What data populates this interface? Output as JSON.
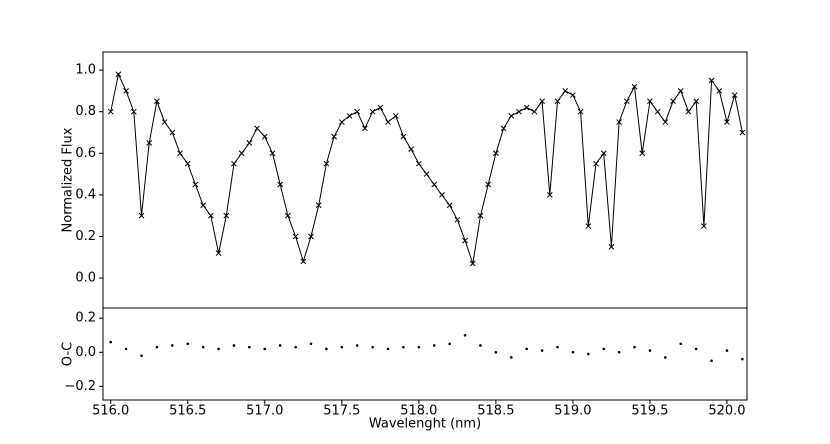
{
  "chart_data": [
    {
      "type": "line",
      "ylabel": "Normalized Flux",
      "color": "#000000",
      "marker": "x",
      "xlim": [
        515.95,
        520.13
      ],
      "ylim": [
        -0.144,
        1.087
      ],
      "yticks": [
        {
          "value": 0,
          "label": "0.0"
        },
        0.2,
        0.4,
        0.6,
        0.8,
        {
          "value": 1,
          "label": "1.0"
        }
      ],
      "x": [
        516.0,
        516.05,
        516.1,
        516.15,
        516.2,
        516.25,
        516.3,
        516.35,
        516.4,
        516.45,
        516.5,
        516.55,
        516.6,
        516.65,
        516.7,
        516.75,
        516.8,
        516.85,
        516.9,
        516.95,
        517.0,
        517.05,
        517.1,
        517.15,
        517.2,
        517.25,
        517.3,
        517.35,
        517.4,
        517.45,
        517.5,
        517.55,
        517.6,
        517.65,
        517.7,
        517.75,
        517.8,
        517.85,
        517.9,
        517.95,
        518.0,
        518.05,
        518.1,
        518.15,
        518.2,
        518.25,
        518.3,
        518.35,
        518.4,
        518.45,
        518.5,
        518.55,
        518.6,
        518.65,
        518.7,
        518.75,
        518.8,
        518.85,
        518.9,
        518.95,
        519.0,
        519.05,
        519.1,
        519.15,
        519.2,
        519.25,
        519.3,
        519.35,
        519.4,
        519.45,
        519.5,
        519.55,
        519.6,
        519.65,
        519.7,
        519.75,
        519.8,
        519.85,
        519.9,
        519.95,
        520.0,
        520.05,
        520.1
      ],
      "values": [
        0.8,
        0.98,
        0.9,
        0.8,
        0.3,
        0.65,
        0.85,
        0.75,
        0.7,
        0.6,
        0.55,
        0.45,
        0.35,
        0.3,
        0.12,
        0.3,
        0.55,
        0.6,
        0.65,
        0.72,
        0.68,
        0.6,
        0.45,
        0.3,
        0.2,
        0.08,
        0.2,
        0.35,
        0.55,
        0.68,
        0.75,
        0.78,
        0.8,
        0.72,
        0.8,
        0.82,
        0.75,
        0.78,
        0.68,
        0.62,
        0.55,
        0.5,
        0.45,
        0.4,
        0.35,
        0.28,
        0.18,
        0.07,
        0.3,
        0.45,
        0.6,
        0.72,
        0.78,
        0.8,
        0.82,
        0.8,
        0.85,
        0.4,
        0.85,
        0.9,
        0.88,
        0.8,
        0.25,
        0.55,
        0.6,
        0.15,
        0.75,
        0.85,
        0.92,
        0.6,
        0.85,
        0.8,
        0.75,
        0.85,
        0.9,
        0.8,
        0.85,
        0.25,
        0.95,
        0.9,
        0.75,
        0.88,
        0.7
      ]
    },
    {
      "type": "scatter",
      "ylabel": "O-C",
      "xlabel": "Wavelenght (nm)",
      "color": "#000000",
      "xlim": [
        515.95,
        520.13
      ],
      "ylim": [
        -0.28,
        0.26
      ],
      "xticks": [
        {
          "value": 516,
          "label": "516.0"
        },
        516.5,
        {
          "value": 517,
          "label": "517.0"
        },
        517.5,
        {
          "value": 518,
          "label": "518.0"
        },
        518.5,
        {
          "value": 519,
          "label": "519.0"
        },
        519.5,
        {
          "value": 520,
          "label": "520.0"
        }
      ],
      "yticks": [
        {
          "value": -0.2,
          "label": "−0.2"
        },
        {
          "value": 0,
          "label": "0.0"
        },
        0.2
      ],
      "x": [
        516.0,
        516.1,
        516.2,
        516.3,
        516.4,
        516.5,
        516.6,
        516.7,
        516.8,
        516.9,
        517.0,
        517.1,
        517.2,
        517.3,
        517.4,
        517.5,
        517.6,
        517.7,
        517.8,
        517.9,
        518.0,
        518.1,
        518.2,
        518.3,
        518.4,
        518.5,
        518.6,
        518.7,
        518.8,
        518.9,
        519.0,
        519.1,
        519.2,
        519.3,
        519.4,
        519.5,
        519.6,
        519.7,
        519.8,
        519.9,
        520.0,
        520.1
      ],
      "values": [
        0.06,
        0.02,
        -0.02,
        0.03,
        0.04,
        0.05,
        0.03,
        0.02,
        0.04,
        0.03,
        0.02,
        0.04,
        0.03,
        0.05,
        0.02,
        0.03,
        0.04,
        0.03,
        0.02,
        0.03,
        0.03,
        0.04,
        0.05,
        0.1,
        0.04,
        0.0,
        -0.03,
        0.02,
        0.01,
        0.03,
        0.0,
        -0.01,
        0.02,
        0.0,
        0.03,
        0.01,
        -0.03,
        0.05,
        0.02,
        -0.05,
        0.01,
        -0.04
      ]
    }
  ]
}
